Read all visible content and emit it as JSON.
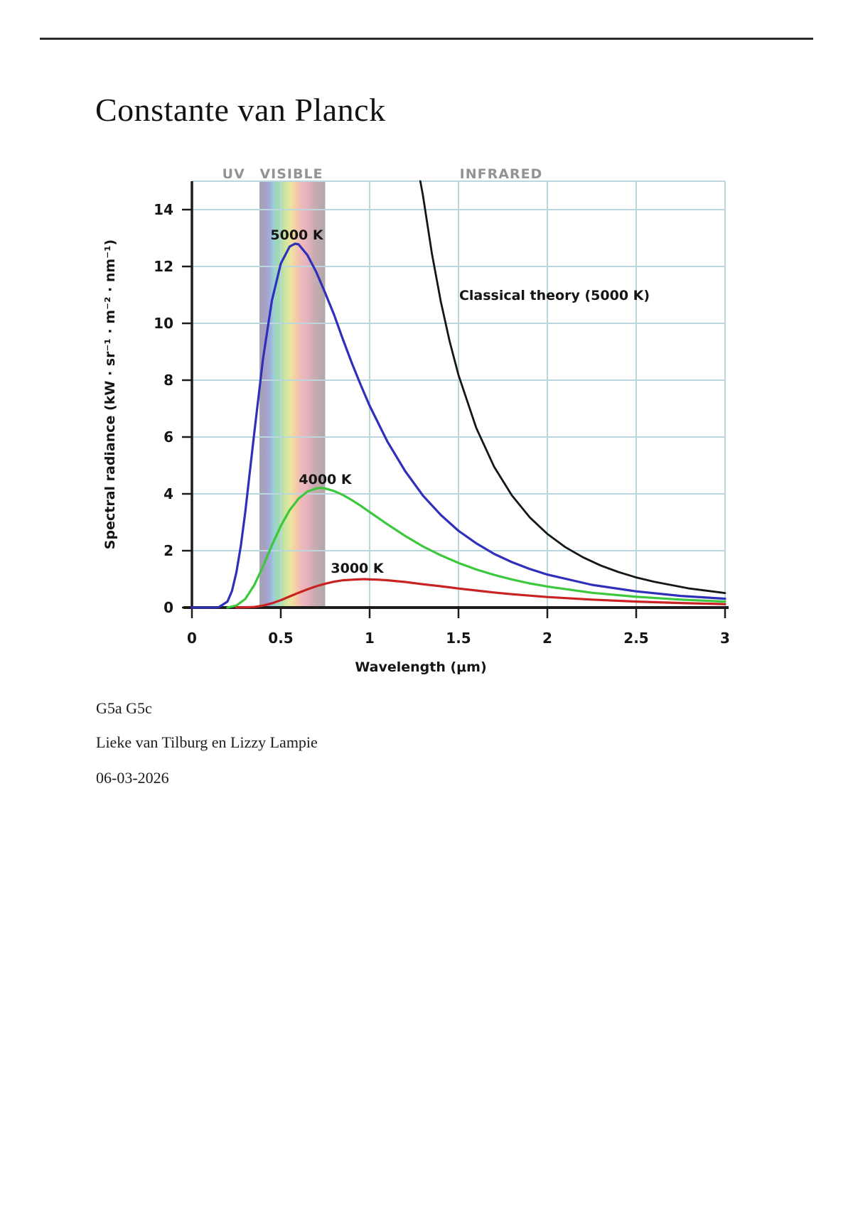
{
  "page": {
    "title": "Constante van Planck",
    "footer_lines": [
      "G5a G5c",
      "Lieke van Tilburg en Lizzy Lampie",
      "06-03-2026"
    ]
  },
  "chart_data": {
    "type": "line",
    "title": "",
    "xlabel": "Wavelength (μm)",
    "ylabel": "Spectral radiance (kW · sr⁻¹ · m⁻² · nm⁻¹)",
    "xlim": [
      0,
      3
    ],
    "ylim": [
      0,
      15
    ],
    "grid": true,
    "grid_color": "#bcd6de",
    "axis_color": "#1c1c1c",
    "x_ticks": [
      0,
      0.5,
      1,
      1.5,
      2,
      2.5,
      3
    ],
    "x_tick_labels": [
      "0",
      "0.5",
      "1",
      "1.5",
      "2",
      "2.5",
      "3"
    ],
    "y_ticks": [
      0,
      2,
      4,
      6,
      8,
      10,
      12,
      14
    ],
    "y_tick_labels": [
      "0",
      "2",
      "4",
      "6",
      "8",
      "10",
      "12",
      "14"
    ],
    "region_labels": [
      {
        "text": "UV",
        "x": 0.235
      },
      {
        "text": "VISIBLE",
        "x": 0.56
      },
      {
        "text": "INFRARED",
        "x": 1.74
      }
    ],
    "visible_band": {
      "x_start": 0.38,
      "x_end": 0.75,
      "gradient": [
        [
          0.0,
          "#a8a4b0"
        ],
        [
          0.09,
          "#a79fc6"
        ],
        [
          0.16,
          "#9fafda"
        ],
        [
          0.22,
          "#9cd0d6"
        ],
        [
          0.3,
          "#a2dca8"
        ],
        [
          0.4,
          "#cfe79f"
        ],
        [
          0.48,
          "#eee3a0"
        ],
        [
          0.55,
          "#f3cfa6"
        ],
        [
          0.62,
          "#f2bcba"
        ],
        [
          0.72,
          "#e8b3bc"
        ],
        [
          0.82,
          "#cbacb2"
        ],
        [
          1.0,
          "#b0a7a8"
        ]
      ]
    },
    "series": [
      {
        "name": "5000 K",
        "color": "#2f2fba",
        "width": 3.2,
        "label_pos": {
          "x": 0.59,
          "y": 12.95
        },
        "points": [
          [
            0,
            0
          ],
          [
            0.1,
            0
          ],
          [
            0.15,
            0.01
          ],
          [
            0.2,
            0.21
          ],
          [
            0.225,
            0.58
          ],
          [
            0.25,
            1.23
          ],
          [
            0.275,
            2.17
          ],
          [
            0.3,
            3.35
          ],
          [
            0.35,
            6.1
          ],
          [
            0.4,
            8.75
          ],
          [
            0.45,
            10.8
          ],
          [
            0.5,
            12.1
          ],
          [
            0.55,
            12.7
          ],
          [
            0.58,
            12.8
          ],
          [
            0.6,
            12.78
          ],
          [
            0.65,
            12.4
          ],
          [
            0.7,
            11.8
          ],
          [
            0.75,
            11.07
          ],
          [
            0.8,
            10.3
          ],
          [
            0.85,
            9.43
          ],
          [
            0.9,
            8.6
          ],
          [
            0.95,
            7.83
          ],
          [
            1.0,
            7.1
          ],
          [
            1.1,
            5.84
          ],
          [
            1.2,
            4.8
          ],
          [
            1.3,
            3.94
          ],
          [
            1.4,
            3.26
          ],
          [
            1.5,
            2.7
          ],
          [
            1.6,
            2.26
          ],
          [
            1.7,
            1.89
          ],
          [
            1.8,
            1.6
          ],
          [
            1.9,
            1.36
          ],
          [
            2.0,
            1.16
          ],
          [
            2.25,
            0.8
          ],
          [
            2.5,
            0.57
          ],
          [
            2.75,
            0.41
          ],
          [
            3.0,
            0.31
          ]
        ]
      },
      {
        "name": "4000 K",
        "color": "#3cc83c",
        "width": 3.2,
        "label_pos": {
          "x": 0.75,
          "y": 4.35
        },
        "points": [
          [
            0.2,
            0
          ],
          [
            0.25,
            0.07
          ],
          [
            0.3,
            0.3
          ],
          [
            0.35,
            0.78
          ],
          [
            0.4,
            1.45
          ],
          [
            0.45,
            2.19
          ],
          [
            0.5,
            2.87
          ],
          [
            0.55,
            3.43
          ],
          [
            0.6,
            3.83
          ],
          [
            0.65,
            4.08
          ],
          [
            0.7,
            4.19
          ],
          [
            0.725,
            4.21
          ],
          [
            0.75,
            4.19
          ],
          [
            0.8,
            4.1
          ],
          [
            0.85,
            3.96
          ],
          [
            0.9,
            3.78
          ],
          [
            0.95,
            3.58
          ],
          [
            1.0,
            3.36
          ],
          [
            1.1,
            2.93
          ],
          [
            1.2,
            2.52
          ],
          [
            1.3,
            2.15
          ],
          [
            1.4,
            1.84
          ],
          [
            1.5,
            1.57
          ],
          [
            1.6,
            1.34
          ],
          [
            1.7,
            1.15
          ],
          [
            1.8,
            0.99
          ],
          [
            1.9,
            0.85
          ],
          [
            2.0,
            0.74
          ],
          [
            2.25,
            0.52
          ],
          [
            2.5,
            0.38
          ],
          [
            2.75,
            0.28
          ],
          [
            3.0,
            0.21
          ]
        ]
      },
      {
        "name": "3000 K",
        "color": "#c92222",
        "width": 3.2,
        "label_pos": {
          "x": 0.93,
          "y": 1.22
        },
        "points": [
          [
            0.25,
            0
          ],
          [
            0.3,
            0.01
          ],
          [
            0.35,
            0.02
          ],
          [
            0.4,
            0.07
          ],
          [
            0.45,
            0.15
          ],
          [
            0.5,
            0.26
          ],
          [
            0.55,
            0.39
          ],
          [
            0.6,
            0.52
          ],
          [
            0.65,
            0.64
          ],
          [
            0.7,
            0.75
          ],
          [
            0.75,
            0.84
          ],
          [
            0.8,
            0.91
          ],
          [
            0.85,
            0.96
          ],
          [
            0.9,
            0.98
          ],
          [
            0.97,
            1.0
          ],
          [
            1.0,
            0.99
          ],
          [
            1.05,
            0.98
          ],
          [
            1.1,
            0.96
          ],
          [
            1.2,
            0.9
          ],
          [
            1.3,
            0.82
          ],
          [
            1.4,
            0.75
          ],
          [
            1.5,
            0.67
          ],
          [
            1.6,
            0.6
          ],
          [
            1.7,
            0.53
          ],
          [
            1.8,
            0.47
          ],
          [
            1.9,
            0.42
          ],
          [
            2.0,
            0.37
          ],
          [
            2.25,
            0.28
          ],
          [
            2.5,
            0.21
          ],
          [
            2.75,
            0.16
          ],
          [
            3.0,
            0.12
          ]
        ]
      },
      {
        "name": "Classical theory (5000 K)",
        "color": "#161616",
        "width": 2.8,
        "label_pos": {
          "x": 2.04,
          "y": 10.83
        },
        "points": [
          [
            1.285,
            15.0
          ],
          [
            1.3,
            14.5
          ],
          [
            1.35,
            12.47
          ],
          [
            1.4,
            10.78
          ],
          [
            1.45,
            9.37
          ],
          [
            1.5,
            8.18
          ],
          [
            1.6,
            6.32
          ],
          [
            1.7,
            4.96
          ],
          [
            1.8,
            3.95
          ],
          [
            1.9,
            3.18
          ],
          [
            2.0,
            2.59
          ],
          [
            2.1,
            2.13
          ],
          [
            2.2,
            1.77
          ],
          [
            2.3,
            1.48
          ],
          [
            2.4,
            1.25
          ],
          [
            2.5,
            1.06
          ],
          [
            2.6,
            0.91
          ],
          [
            2.8,
            0.67
          ],
          [
            3.0,
            0.51
          ]
        ]
      }
    ]
  }
}
